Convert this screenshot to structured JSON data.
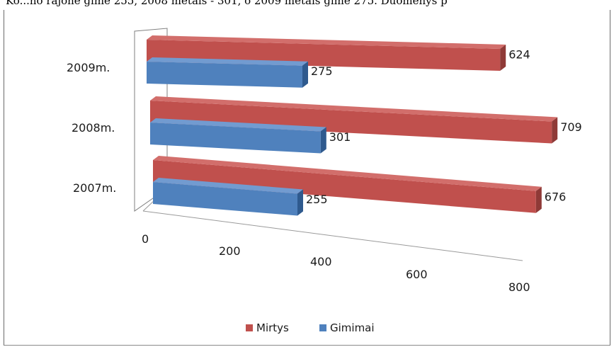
{
  "header_text": "Ko...no rajone gimė 255, 2008 metais - 301, o 2009 metais gimė 275. Duomenys p",
  "chart_data": {
    "type": "bar",
    "orientation": "horizontal",
    "style": "3d-clustered",
    "categories": [
      "2007m.",
      "2008m.",
      "2009m."
    ],
    "series": [
      {
        "name": "Mirtys",
        "values": [
          676,
          709,
          624
        ],
        "color": "#c0504d"
      },
      {
        "name": "Gimimai",
        "values": [
          255,
          301,
          275
        ],
        "color": "#4f81bd"
      }
    ],
    "x_ticks": [
      "0",
      "200",
      "400",
      "600",
      "800"
    ],
    "xlim": [
      0,
      800
    ],
    "legend_position": "bottom",
    "data_labels": true
  }
}
